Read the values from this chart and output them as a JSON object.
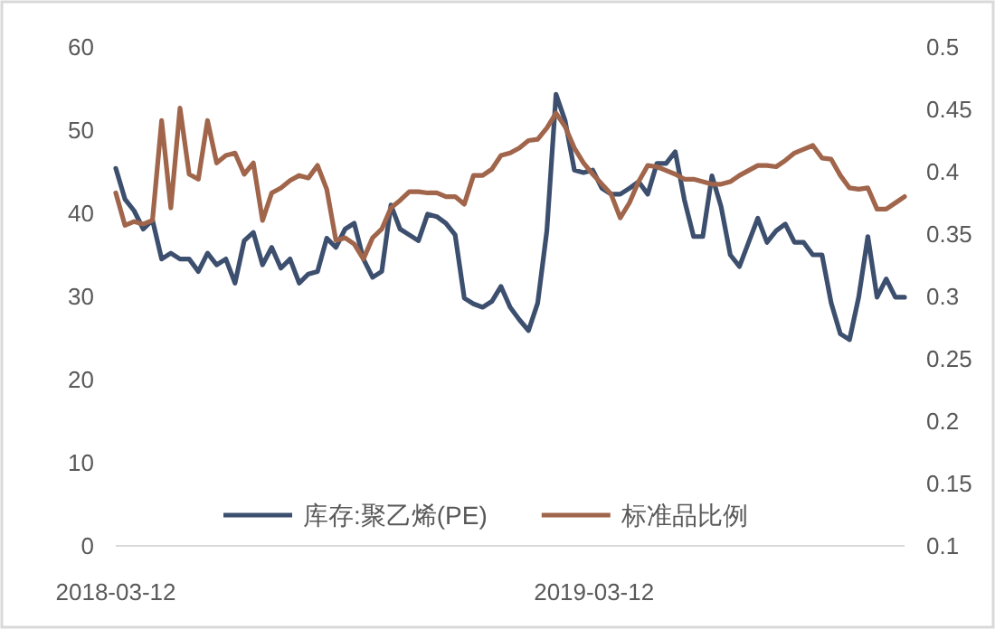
{
  "chart_data": {
    "type": "line",
    "legend": "bottom",
    "x": [
      "2018-03-12",
      "2018-03-19",
      "2018-03-26",
      "2018-04-02",
      "2018-04-09",
      "2018-04-16",
      "2018-04-23",
      "2018-04-30",
      "2018-05-07",
      "2018-05-14",
      "2018-05-21",
      "2018-05-28",
      "2018-06-04",
      "2018-06-11",
      "2018-06-18",
      "2018-06-25",
      "2018-07-02",
      "2018-07-09",
      "2018-07-16",
      "2018-07-23",
      "2018-07-30",
      "2018-08-06",
      "2018-08-13",
      "2018-08-20",
      "2018-08-27",
      "2018-09-03",
      "2018-09-10",
      "2018-09-17",
      "2018-09-24",
      "2018-10-01",
      "2018-10-08",
      "2018-10-15",
      "2018-10-22",
      "2018-10-29",
      "2018-11-05",
      "2018-11-12",
      "2018-11-19",
      "2018-11-26",
      "2018-12-03",
      "2018-12-10",
      "2018-12-17",
      "2018-12-24",
      "2018-12-31",
      "2019-01-07",
      "2019-01-14",
      "2019-01-21",
      "2019-01-28",
      "2019-02-04",
      "2019-02-11",
      "2019-02-18",
      "2019-02-25",
      "2019-03-04",
      "2019-03-11",
      "2019-03-18",
      "2019-03-25",
      "2019-04-01",
      "2019-04-08",
      "2019-04-15",
      "2019-04-22",
      "2019-04-29",
      "2019-05-06",
      "2019-05-13",
      "2019-05-20",
      "2019-05-27",
      "2019-06-03",
      "2019-06-10",
      "2019-06-17",
      "2019-06-24",
      "2019-07-01",
      "2019-07-08",
      "2019-07-15",
      "2019-07-22",
      "2019-07-29",
      "2019-08-05",
      "2019-08-12",
      "2019-08-19",
      "2019-08-26",
      "2019-09-02",
      "2019-09-09",
      "2019-09-16",
      "2019-09-23",
      "2019-09-30",
      "2019-10-07",
      "2019-10-14",
      "2019-10-21",
      "2019-10-28",
      "2019-11-04"
    ],
    "series": [
      {
        "name": "库存:聚乙烯(PE)",
        "color": "#3d4f6e",
        "values": [
          45.4,
          41.7,
          40.3,
          38.1,
          39.2,
          34.5,
          35.2,
          34.5,
          34.5,
          33.0,
          35.2,
          33.8,
          34.5,
          31.6,
          36.7,
          37.7,
          33.8,
          35.9,
          33.4,
          34.5,
          31.6,
          32.7,
          33.0,
          37.0,
          35.9,
          38.1,
          38.8,
          34.5,
          32.3,
          33.0,
          41.0,
          38.1,
          37.4,
          36.7,
          39.9,
          39.6,
          38.8,
          37.4,
          29.8,
          29.1,
          28.7,
          29.4,
          31.2,
          28.7,
          27.2,
          25.9,
          29.2,
          37.9,
          54.3,
          51.1,
          45.2,
          44.9,
          45.2,
          43.0,
          42.3,
          42.3,
          43.0,
          43.8,
          42.3,
          46.0,
          46.0,
          47.4,
          41.6,
          37.2,
          37.2,
          44.5,
          40.8,
          35.0,
          33.6,
          36.5,
          39.4,
          36.5,
          37.9,
          38.7,
          36.5,
          36.5,
          35.0,
          35.0,
          29.2,
          25.5,
          24.8,
          29.9,
          37.2,
          29.9,
          32.1,
          29.9,
          29.9
        ]
      },
      {
        "name": "标准品比例",
        "color": "#a0654a",
        "axis": "y2",
        "values": [
          0.383,
          0.357,
          0.36,
          0.358,
          0.361,
          0.441,
          0.371,
          0.451,
          0.398,
          0.394,
          0.441,
          0.407,
          0.413,
          0.415,
          0.398,
          0.407,
          0.361,
          0.383,
          0.387,
          0.393,
          0.397,
          0.395,
          0.405,
          0.386,
          0.345,
          0.347,
          0.342,
          0.33,
          0.347,
          0.354,
          0.371,
          0.377,
          0.384,
          0.384,
          0.383,
          0.383,
          0.38,
          0.38,
          0.374,
          0.397,
          0.397,
          0.402,
          0.413,
          0.415,
          0.419,
          0.425,
          0.426,
          0.435,
          0.447,
          0.436,
          0.419,
          0.407,
          0.398,
          0.39,
          0.382,
          0.363,
          0.375,
          0.392,
          0.405,
          0.404,
          0.401,
          0.398,
          0.394,
          0.394,
          0.392,
          0.39,
          0.39,
          0.392,
          0.397,
          0.401,
          0.405,
          0.405,
          0.404,
          0.409,
          0.415,
          0.418,
          0.421,
          0.411,
          0.41,
          0.397,
          0.387,
          0.386,
          0.387,
          0.37,
          0.37,
          0.375,
          0.38
        ]
      }
    ],
    "xlim": [
      "2018-03-12",
      "2019-11-04"
    ],
    "xticks": [
      "2018-03-12",
      "2019-03-12"
    ],
    "ylim": [
      0,
      60
    ],
    "yticks": [
      0,
      10,
      20,
      30,
      40,
      50,
      60
    ],
    "y2lim": [
      0.1,
      0.5
    ],
    "y2ticks": [
      0.1,
      0.15,
      0.2,
      0.25,
      0.3,
      0.35,
      0.4,
      0.45,
      0.5
    ]
  }
}
